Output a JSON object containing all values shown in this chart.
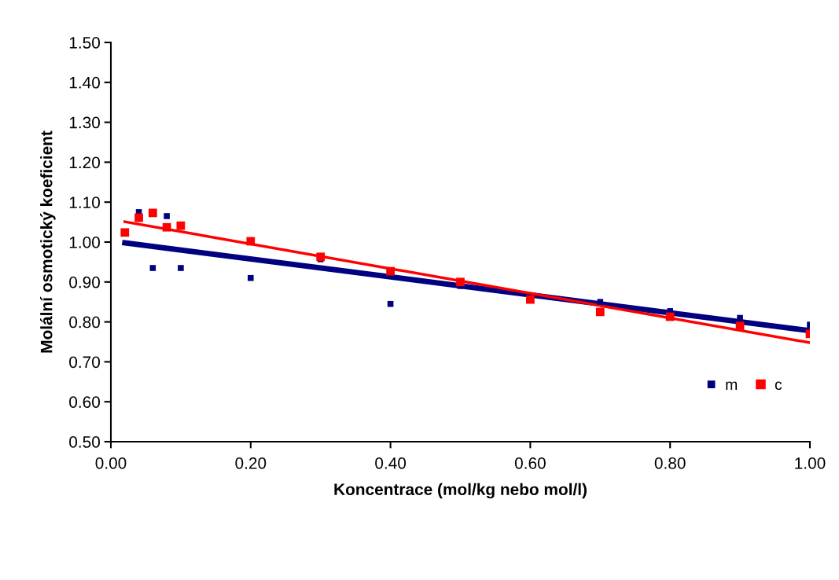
{
  "chart_data": {
    "type": "scatter",
    "xlabel": "Koncentrace (mol/kg nebo mol/l)",
    "ylabel": "Molální osmotický koeficient",
    "series": [
      {
        "name": "m",
        "color": "#000080",
        "marker": "square",
        "x": [
          0.04,
          0.06,
          0.08,
          0.1,
          0.2,
          0.3,
          0.4,
          0.5,
          0.7,
          0.8,
          0.9,
          1.0
        ],
        "values": [
          1.075,
          0.935,
          1.065,
          0.935,
          0.91,
          0.957,
          0.845,
          0.89,
          0.85,
          0.827,
          0.81,
          0.793
        ]
      },
      {
        "name": "c",
        "color": "#ff0000",
        "marker": "square",
        "x": [
          0.02,
          0.04,
          0.06,
          0.08,
          0.1,
          0.2,
          0.3,
          0.4,
          0.5,
          0.6,
          0.7,
          0.8,
          0.9,
          1.0
        ],
        "values": [
          1.024,
          1.061,
          1.073,
          1.037,
          1.041,
          1.002,
          0.963,
          0.927,
          0.9,
          0.856,
          0.825,
          0.813,
          0.79,
          0.77
        ]
      },
      {
        "type": "line",
        "color": "#000080",
        "x": [
          0.02,
          1.0
        ],
        "values": [
          0.998,
          0.778
        ]
      },
      {
        "type": "line",
        "color": "#ff0000",
        "x": [
          0.02,
          1.0
        ],
        "values": [
          1.051,
          0.748
        ]
      }
    ],
    "xlim": [
      0,
      1
    ],
    "ylim": [
      0.5,
      1.5
    ],
    "xticks": [
      {
        "value": 0,
        "label": "0.00"
      },
      {
        "value": 0.2,
        "label": "0.20"
      },
      {
        "value": 0.4,
        "label": "0.40"
      },
      {
        "value": 0.6,
        "label": "0.60"
      },
      {
        "value": 0.8,
        "label": "0.80"
      },
      {
        "value": 1,
        "label": "1.00"
      }
    ],
    "yticks": [
      {
        "value": 0.5,
        "label": "0.50"
      },
      {
        "value": 0.6,
        "label": "0.60"
      },
      {
        "value": 0.7,
        "label": "0.70"
      },
      {
        "value": 0.8,
        "label": "0.80"
      },
      {
        "value": 0.9,
        "label": "0.90"
      },
      {
        "value": 1.0,
        "label": "1.00"
      },
      {
        "value": 1.1,
        "label": "1.10"
      },
      {
        "value": 1.2,
        "label": "1.20"
      },
      {
        "value": 1.3,
        "label": "1.30"
      },
      {
        "value": 1.4,
        "label": "1.40"
      },
      {
        "value": 1.5,
        "label": "1.50"
      }
    ],
    "legend": "right",
    "grid": false
  }
}
